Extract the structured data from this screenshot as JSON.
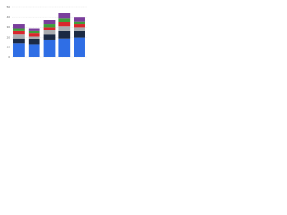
{
  "chart_data": {
    "type": "stacked-bar",
    "categories": [
      null,
      null,
      null,
      null,
      null
    ],
    "series": [
      {
        "color": "#2f6ee5",
        "values": [
          14,
          13,
          17,
          19,
          20
        ]
      },
      {
        "color": "#1b2a44",
        "values": [
          5,
          5,
          6,
          7,
          6
        ]
      },
      {
        "color": "#a9acb0",
        "values": [
          4,
          3,
          4,
          5,
          4
        ]
      },
      {
        "color": "#d9262c",
        "values": [
          3,
          3,
          3,
          4,
          3
        ]
      },
      {
        "color": "#3f9e3a",
        "values": [
          3,
          2,
          3,
          4,
          3
        ]
      },
      {
        "color": "#7a3e9c",
        "values": [
          4,
          3,
          4.5,
          5,
          4
        ]
      }
    ],
    "ylim": [
      0,
      50
    ],
    "yticks": [
      0,
      10,
      20,
      30,
      40,
      50
    ],
    "grid": true
  }
}
